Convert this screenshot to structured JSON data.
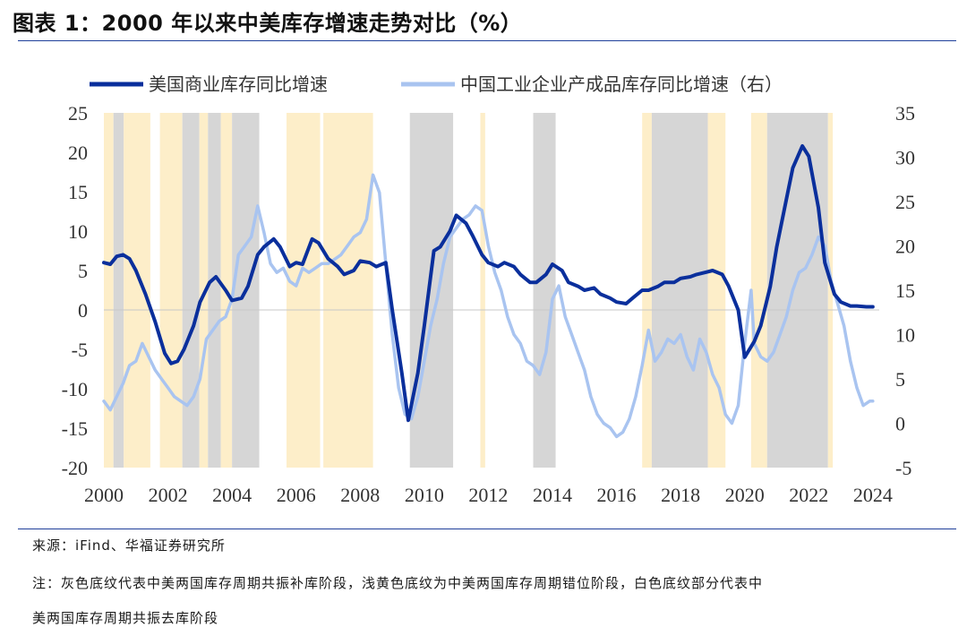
{
  "figure": {
    "title": "图表 1：2000 年以来中美库存增速走势对比（%）",
    "source": "来源：iFind、华福证券研究所",
    "note_line1": "注：灰色底纹代表中美两国库存周期共振补库阶段，浅黄色底纹为中美两国库存周期错位阶段，白色底纹部分代表中",
    "note_line2": "美两国库存周期共振去库阶段"
  },
  "colors": {
    "us_series": "#0a2f9c",
    "cn_series": "#a9c4f0",
    "gray_band": "#d6d6d6",
    "yellow_band": "#fdeec9",
    "rule": "#1f3f9a"
  },
  "chart_data": {
    "type": "line",
    "x_range": [
      2000,
      2024.2
    ],
    "y_left": {
      "min": -20,
      "max": 25,
      "ticks": [
        25,
        20,
        15,
        10,
        5,
        0,
        -5,
        -10,
        -15,
        -20
      ],
      "tick_labels": [
        "25",
        "20",
        "15",
        "10",
        "5",
        "0",
        "-5",
        "-10",
        "-15",
        "-20"
      ]
    },
    "y_right": {
      "min": -5,
      "max": 35,
      "ticks": [
        35,
        30,
        25,
        20,
        15,
        10,
        5,
        0,
        -5
      ],
      "tick_labels": [
        "35",
        "30",
        "25",
        "20",
        "15",
        "10",
        "5",
        "0",
        "-5"
      ]
    },
    "x_ticks": [
      2000,
      2002,
      2004,
      2006,
      2008,
      2010,
      2012,
      2014,
      2016,
      2018,
      2020,
      2022,
      2024
    ],
    "x_tick_labels": [
      "2000",
      "2002",
      "2004",
      "2006",
      "2008",
      "2010",
      "2012",
      "2014",
      "2016",
      "2018",
      "2020",
      "2022",
      "2024"
    ],
    "legend": [
      "美国商业库存同比增速",
      "中国工业企业产成品库存同比增速（右）"
    ],
    "shaded_periods": [
      {
        "start": 2000.0,
        "end": 2000.3,
        "phase": "yellow"
      },
      {
        "start": 2000.3,
        "end": 2000.62,
        "phase": "gray"
      },
      {
        "start": 2000.62,
        "end": 2001.45,
        "phase": "yellow"
      },
      {
        "start": 2001.75,
        "end": 2002.45,
        "phase": "yellow"
      },
      {
        "start": 2002.45,
        "end": 2002.98,
        "phase": "gray"
      },
      {
        "start": 2002.98,
        "end": 2003.25,
        "phase": "yellow"
      },
      {
        "start": 2003.25,
        "end": 2003.65,
        "phase": "gray"
      },
      {
        "start": 2003.65,
        "end": 2004.0,
        "phase": "yellow"
      },
      {
        "start": 2004.0,
        "end": 2004.85,
        "phase": "gray"
      },
      {
        "start": 2005.7,
        "end": 2006.75,
        "phase": "yellow"
      },
      {
        "start": 2006.85,
        "end": 2008.4,
        "phase": "yellow"
      },
      {
        "start": 2009.55,
        "end": 2010.9,
        "phase": "gray"
      },
      {
        "start": 2011.75,
        "end": 2011.9,
        "phase": "yellow"
      },
      {
        "start": 2013.4,
        "end": 2014.1,
        "phase": "gray"
      },
      {
        "start": 2016.8,
        "end": 2017.1,
        "phase": "yellow"
      },
      {
        "start": 2017.1,
        "end": 2018.85,
        "phase": "gray"
      },
      {
        "start": 2018.85,
        "end": 2019.4,
        "phase": "yellow"
      },
      {
        "start": 2020.2,
        "end": 2020.7,
        "phase": "yellow"
      },
      {
        "start": 2020.7,
        "end": 2022.6,
        "phase": "gray"
      },
      {
        "start": 2022.6,
        "end": 2022.75,
        "phase": "yellow"
      }
    ],
    "series": [
      {
        "name": "美国商业库存同比增速",
        "axis": "left",
        "x": [
          2000.0,
          2000.2,
          2000.4,
          2000.6,
          2000.8,
          2001.0,
          2001.3,
          2001.6,
          2001.9,
          2002.1,
          2002.3,
          2002.5,
          2002.8,
          2003.0,
          2003.3,
          2003.5,
          2003.8,
          2004.0,
          2004.3,
          2004.5,
          2004.8,
          2005.0,
          2005.3,
          2005.5,
          2005.8,
          2006.0,
          2006.2,
          2006.5,
          2006.7,
          2007.0,
          2007.3,
          2007.5,
          2007.8,
          2008.0,
          2008.3,
          2008.5,
          2008.8,
          2009.0,
          2009.3,
          2009.5,
          2009.8,
          2010.0,
          2010.3,
          2010.5,
          2010.8,
          2011.0,
          2011.3,
          2011.5,
          2011.8,
          2012.0,
          2012.3,
          2012.5,
          2012.8,
          2013.0,
          2013.3,
          2013.5,
          2013.8,
          2014.0,
          2014.3,
          2014.5,
          2014.8,
          2015.0,
          2015.3,
          2015.5,
          2015.8,
          2016.0,
          2016.3,
          2016.5,
          2016.8,
          2017.0,
          2017.3,
          2017.5,
          2017.8,
          2018.0,
          2018.3,
          2018.5,
          2018.8,
          2019.0,
          2019.3,
          2019.5,
          2019.8,
          2020.0,
          2020.3,
          2020.5,
          2020.8,
          2021.0,
          2021.3,
          2021.5,
          2021.8,
          2022.0,
          2022.3,
          2022.5,
          2022.8,
          2023.0,
          2023.3,
          2023.5,
          2023.8,
          2024.0
        ],
        "values": [
          6.0,
          5.8,
          6.8,
          7.0,
          6.5,
          5.0,
          2.0,
          -1.5,
          -5.5,
          -6.8,
          -6.5,
          -5.0,
          -2.0,
          1.0,
          3.5,
          4.2,
          2.5,
          1.2,
          1.5,
          3.0,
          7.0,
          8.0,
          9.0,
          8.0,
          5.5,
          6.0,
          5.8,
          9.0,
          8.5,
          6.5,
          5.5,
          4.5,
          5.0,
          6.2,
          6.0,
          5.5,
          6.0,
          0.0,
          -8.0,
          -14.0,
          -8.0,
          -2.0,
          7.5,
          8.0,
          10.0,
          12.0,
          11.0,
          9.5,
          7.0,
          6.0,
          5.5,
          6.0,
          5.5,
          4.5,
          3.5,
          3.5,
          4.5,
          5.8,
          5.0,
          3.5,
          3.0,
          2.5,
          2.8,
          2.0,
          1.5,
          1.0,
          0.8,
          1.5,
          2.5,
          2.5,
          3.0,
          3.5,
          3.5,
          4.0,
          4.2,
          4.5,
          4.8,
          5.0,
          4.5,
          3.0,
          0.0,
          -6.0,
          -4.0,
          -2.0,
          3.0,
          8.0,
          14.0,
          18.0,
          20.8,
          19.5,
          13.0,
          6.0,
          2.0,
          1.0,
          0.5,
          0.5,
          0.4,
          0.4
        ]
      },
      {
        "name": "中国工业企业产成品库存同比增速（右）",
        "axis": "right",
        "x": [
          2000.0,
          2000.2,
          2000.4,
          2000.6,
          2000.8,
          2001.0,
          2001.2,
          2001.4,
          2001.6,
          2001.8,
          2002.0,
          2002.2,
          2002.4,
          2002.6,
          2002.8,
          2003.0,
          2003.2,
          2003.4,
          2003.6,
          2003.8,
          2004.0,
          2004.2,
          2004.4,
          2004.6,
          2004.8,
          2005.0,
          2005.2,
          2005.4,
          2005.6,
          2005.8,
          2006.0,
          2006.2,
          2006.4,
          2006.6,
          2006.8,
          2007.0,
          2007.2,
          2007.4,
          2007.6,
          2007.8,
          2008.0,
          2008.2,
          2008.4,
          2008.6,
          2008.8,
          2009.0,
          2009.2,
          2009.4,
          2009.6,
          2009.8,
          2010.0,
          2010.2,
          2010.4,
          2010.6,
          2010.8,
          2011.0,
          2011.2,
          2011.4,
          2011.6,
          2011.8,
          2012.0,
          2012.2,
          2012.4,
          2012.6,
          2012.8,
          2013.0,
          2013.2,
          2013.4,
          2013.6,
          2013.8,
          2014.0,
          2014.2,
          2014.4,
          2014.6,
          2014.8,
          2015.0,
          2015.2,
          2015.4,
          2015.6,
          2015.8,
          2016.0,
          2016.2,
          2016.4,
          2016.6,
          2016.8,
          2017.0,
          2017.2,
          2017.4,
          2017.6,
          2017.8,
          2018.0,
          2018.2,
          2018.4,
          2018.6,
          2018.8,
          2019.0,
          2019.2,
          2019.4,
          2019.6,
          2019.8,
          2020.0,
          2020.2,
          2020.3,
          2020.5,
          2020.7,
          2020.9,
          2021.1,
          2021.3,
          2021.5,
          2021.7,
          2021.9,
          2022.1,
          2022.3,
          2022.5,
          2022.7,
          2022.9,
          2023.1,
          2023.3,
          2023.5,
          2023.7,
          2023.9,
          2024.0
        ],
        "values": [
          2.5,
          1.5,
          3.0,
          4.5,
          6.5,
          7.0,
          9.0,
          7.5,
          6.0,
          5.0,
          4.0,
          3.0,
          2.5,
          2.0,
          3.0,
          5.0,
          9.5,
          10.5,
          11.5,
          12.0,
          14.0,
          19.0,
          20.0,
          21.0,
          24.5,
          21.5,
          18.0,
          17.0,
          17.5,
          16.0,
          15.5,
          17.5,
          17.0,
          17.5,
          18.0,
          18.0,
          18.5,
          19.0,
          20.0,
          21.0,
          21.5,
          23.0,
          28.0,
          26.0,
          18.0,
          10.0,
          4.0,
          1.0,
          0.5,
          3.0,
          7.0,
          11.0,
          14.0,
          18.0,
          21.0,
          22.0,
          23.0,
          23.5,
          24.5,
          24.0,
          20.0,
          17.0,
          15.0,
          12.0,
          10.0,
          9.0,
          7.0,
          6.5,
          5.5,
          8.0,
          14.0,
          15.5,
          12.0,
          10.0,
          8.0,
          6.0,
          3.0,
          1.0,
          0.0,
          -0.5,
          -1.5,
          -1.0,
          0.5,
          3.0,
          6.5,
          10.5,
          7.0,
          8.0,
          9.5,
          9.0,
          10.0,
          7.5,
          6.0,
          9.5,
          8.0,
          5.5,
          4.0,
          1.0,
          0.0,
          2.0,
          9.0,
          15.0,
          9.0,
          7.5,
          7.0,
          8.0,
          10.0,
          12.0,
          15.0,
          17.0,
          17.5,
          19.0,
          21.0,
          20.0,
          16.0,
          13.5,
          11.0,
          7.0,
          4.0,
          2.0,
          2.5,
          2.5
        ]
      }
    ]
  }
}
